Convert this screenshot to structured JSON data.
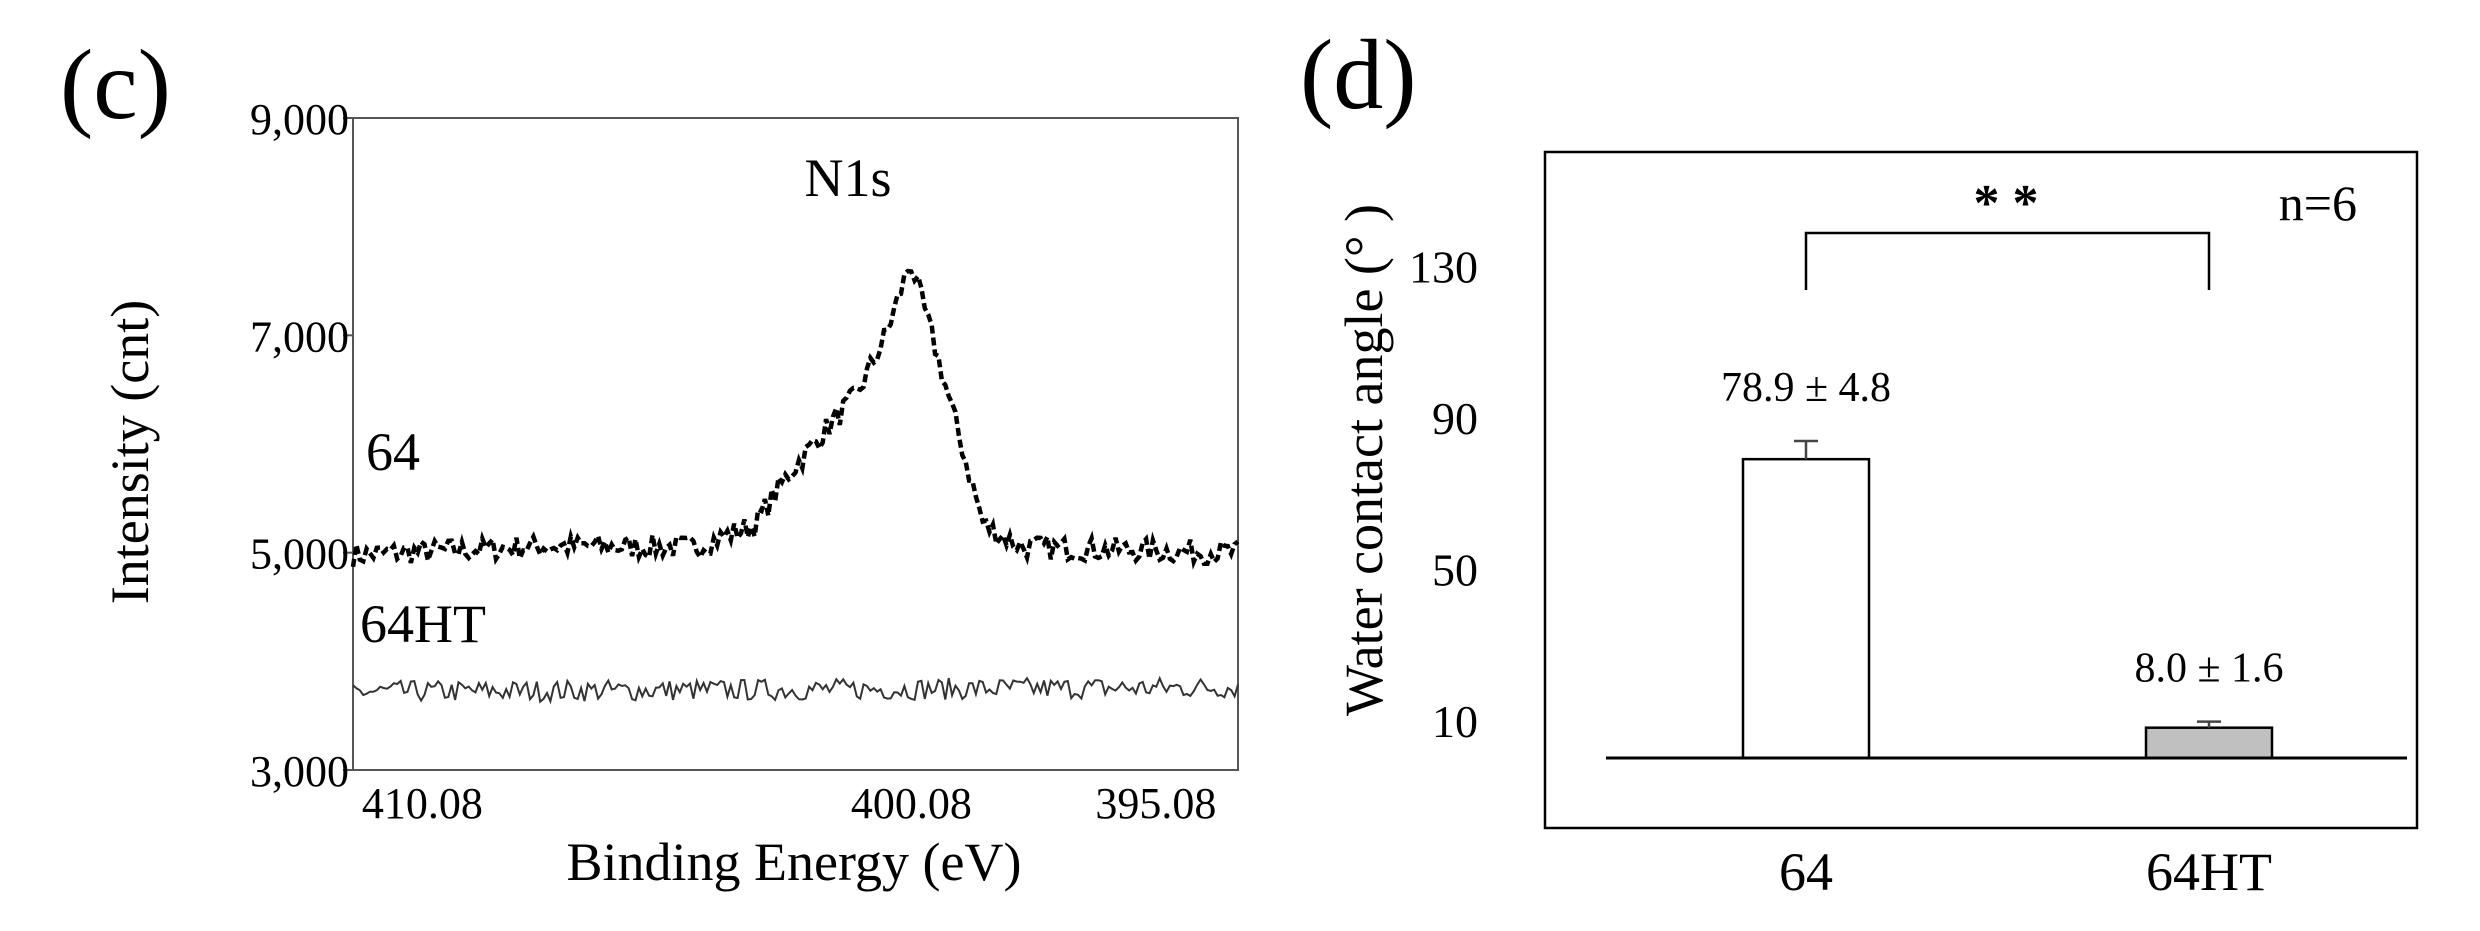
{
  "panels": {
    "c": {
      "label": "(c)",
      "chart_data": {
        "type": "line",
        "title": "",
        "annotation": "N1s",
        "xlabel": "Binding Energy (eV)",
        "ylabel": "Intensity (cnt)",
        "xlim": [
          411.5,
          393.4
        ],
        "x_reversed": true,
        "ylim": [
          3000,
          9000
        ],
        "x_ticks": [
          410.08,
          400.08,
          395.08
        ],
        "x_tick_labels": [
          "410.08",
          "400.08",
          "395.08"
        ],
        "y_ticks": [
          3000,
          5000,
          7000,
          9000
        ],
        "y_tick_labels": [
          "3,000",
          "5,000",
          "7,000",
          "9,000"
        ],
        "grid": false,
        "series": [
          {
            "name": "64",
            "style": "dashed",
            "noise": 110,
            "baseline": 5080,
            "points": [
              [
                411.5,
                4980
              ],
              [
                407.5,
                5060
              ],
              [
                404.5,
                5050
              ],
              [
                403.3,
                5250
              ],
              [
                402.6,
                5720
              ],
              [
                401.8,
                6150
              ],
              [
                401.2,
                6450
              ],
              [
                400.6,
                7000
              ],
              [
                400.1,
                7680
              ],
              [
                399.6,
                6900
              ],
              [
                399.0,
                5900
              ],
              [
                398.6,
                5250
              ],
              [
                397.8,
                5050
              ],
              [
                393.4,
                5000
              ]
            ]
          },
          {
            "name": "64HT",
            "style": "solid",
            "noise": 100,
            "baseline": 3730,
            "points": [
              [
                411.5,
                3720
              ],
              [
                393.4,
                3760
              ]
            ]
          }
        ]
      }
    },
    "d": {
      "label": "(d)",
      "chart_data": {
        "type": "bar",
        "title": "",
        "xlabel": "",
        "ylabel": "Water contact angle (° )",
        "categories": [
          "64",
          "64HT"
        ],
        "values": [
          78.9,
          8.0
        ],
        "errors": [
          4.8,
          1.6
        ],
        "value_labels": [
          "78.9 ± 4.8",
          "8.0 ± 1.6"
        ],
        "bar_colors": [
          "#ffffff",
          "#c0c0c0"
        ],
        "ylim": [
          0,
          160
        ],
        "y_ticks": [
          10,
          50,
          90,
          130
        ],
        "y_tick_labels": [
          "10",
          "50",
          "90",
          "130"
        ],
        "significance": "* *",
        "annotation": "n=6",
        "grid": false
      }
    }
  }
}
